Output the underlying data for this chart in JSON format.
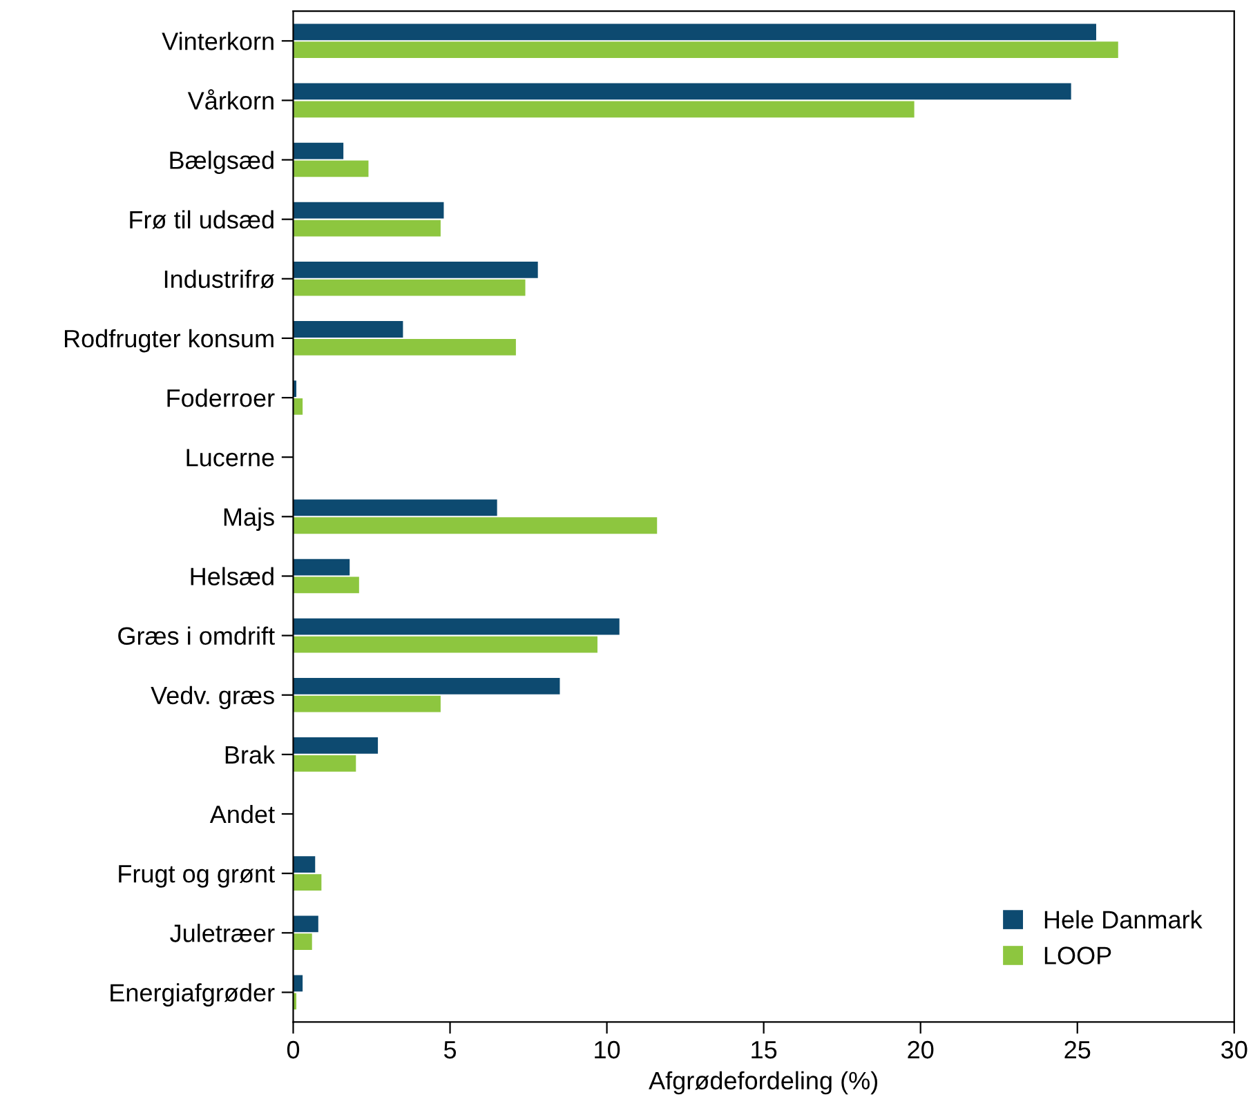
{
  "chart_data": {
    "type": "bar",
    "orientation": "horizontal",
    "xlabel": "Afgrødefordeling (%)",
    "categories": [
      "Vinterkorn",
      "Vårkorn",
      "Bælgsæd",
      "Frø til udsæd",
      "Industrifrø",
      "Rodfrugter konsum",
      "Foderroer",
      "Lucerne",
      "Majs",
      "Helsæd",
      "Græs i omdrift",
      "Vedv. græs",
      "Brak",
      "Andet",
      "Frugt og grønt",
      "Juletræer",
      "Energiafgrøder"
    ],
    "series": [
      {
        "name": "Hele Danmark",
        "color": "#0d4a70",
        "values": [
          25.6,
          24.8,
          1.6,
          4.8,
          7.8,
          3.5,
          0.1,
          0,
          6.5,
          1.8,
          10.4,
          8.5,
          2.7,
          0,
          0.7,
          0.8,
          0.3
        ]
      },
      {
        "name": "LOOP",
        "color": "#8dc63f",
        "values": [
          26.3,
          19.8,
          2.4,
          4.7,
          7.4,
          7.1,
          0.3,
          0,
          11.6,
          2.1,
          9.7,
          4.7,
          2.0,
          0,
          0.9,
          0.6,
          0.1
        ]
      }
    ],
    "xlim": [
      0,
      30
    ],
    "xticks": [
      0,
      5,
      10,
      15,
      20,
      25,
      30
    ],
    "grid": false,
    "legend": "bottom right"
  }
}
